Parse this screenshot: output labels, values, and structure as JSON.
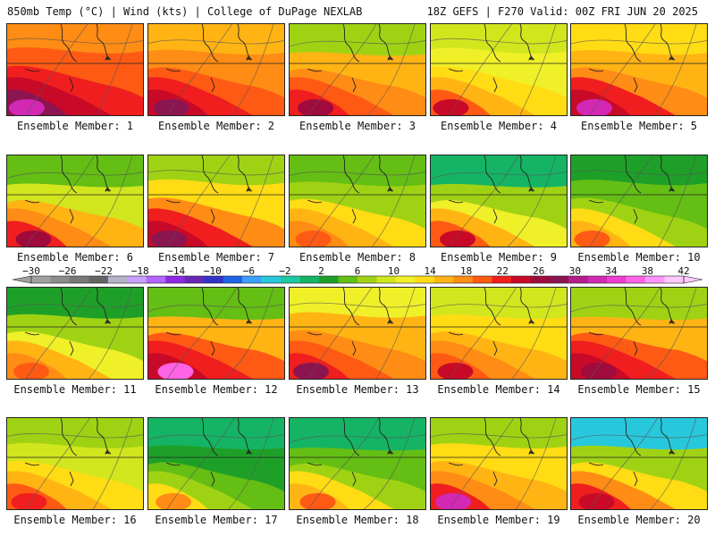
{
  "header": {
    "left": "850mb Temp (°C) | Wind (kts) | College of DuPage NEXLAB",
    "right": "18Z GEFS | F270 Valid: 00Z FRI JUN 20 2025"
  },
  "colorbar": {
    "labels": [
      "−30",
      "−26",
      "−22",
      "−18",
      "−14",
      "−10",
      "−6",
      "−2",
      "2",
      "6",
      "10",
      "14",
      "18",
      "22",
      "26",
      "30",
      "34",
      "38",
      "42"
    ],
    "colors": [
      "#a0a0a0",
      "#8c8c8c",
      "#787878",
      "#646464",
      "#b4b4c8",
      "#c8a0ff",
      "#b464ff",
      "#8c28e6",
      "#6428b4",
      "#3232c8",
      "#1e64e6",
      "#3ca0ff",
      "#28c8dc",
      "#1ec8a0",
      "#14b464",
      "#1ea028",
      "#64be14",
      "#a0d214",
      "#d2e61e",
      "#f0f028",
      "#ffdc14",
      "#ffb414",
      "#ff8c14",
      "#ff5a14",
      "#f01e1e",
      "#c80a28",
      "#a00a3c",
      "#8c1450",
      "#b41e8c",
      "#d228b4",
      "#f03cd2",
      "#ff64e6",
      "#ff96ff",
      "#ffc8ff"
    ]
  },
  "members": [
    {
      "label": "Ensemble Member: 1",
      "palette": [
        "#ff8c14",
        "#ff5a14",
        "#f01e1e",
        "#c80a28",
        "#8c1450",
        "#d228b4"
      ]
    },
    {
      "label": "Ensemble Member: 2",
      "palette": [
        "#ffb414",
        "#ff8c14",
        "#ff5a14",
        "#f01e1e",
        "#c80a28",
        "#8c1450"
      ]
    },
    {
      "label": "Ensemble Member: 3",
      "palette": [
        "#a0d214",
        "#ffb414",
        "#ff8c14",
        "#ff5a14",
        "#f01e1e",
        "#a00a3c"
      ]
    },
    {
      "label": "Ensemble Member: 4",
      "palette": [
        "#d2e61e",
        "#f0f028",
        "#ffdc14",
        "#ffb414",
        "#ff5a14",
        "#c80a28"
      ]
    },
    {
      "label": "Ensemble Member: 5",
      "palette": [
        "#ffdc14",
        "#ffb414",
        "#ff8c14",
        "#f01e1e",
        "#c80a28",
        "#d228b4"
      ]
    },
    {
      "label": "Ensemble Member: 6",
      "palette": [
        "#64be14",
        "#d2e61e",
        "#ffb414",
        "#ff8c14",
        "#f01e1e",
        "#a00a3c"
      ]
    },
    {
      "label": "Ensemble Member: 7",
      "palette": [
        "#a0d214",
        "#ffdc14",
        "#ff8c14",
        "#f01e1e",
        "#c80a28",
        "#8c1450"
      ]
    },
    {
      "label": "Ensemble Member: 8",
      "palette": [
        "#64be14",
        "#a0d214",
        "#ffdc14",
        "#ffb414",
        "#ff8c14",
        "#ff5a14"
      ]
    },
    {
      "label": "Ensemble Member: 9",
      "palette": [
        "#14b464",
        "#a0d214",
        "#f0f028",
        "#ffb414",
        "#ff5a14",
        "#c80a28"
      ]
    },
    {
      "label": "Ensemble Member: 10",
      "palette": [
        "#1ea028",
        "#64be14",
        "#a0d214",
        "#ffdc14",
        "#ffb414",
        "#ff5a14"
      ]
    },
    {
      "label": "Ensemble Member: 11",
      "palette": [
        "#1ea028",
        "#a0d214",
        "#f0f028",
        "#ffb414",
        "#ff8c14",
        "#ff5a14"
      ]
    },
    {
      "label": "Ensemble Member: 12",
      "palette": [
        "#64be14",
        "#ffb414",
        "#ff5a14",
        "#f01e1e",
        "#c80a28",
        "#ff64e6"
      ]
    },
    {
      "label": "Ensemble Member: 13",
      "palette": [
        "#f0f028",
        "#ffb414",
        "#ff8c14",
        "#ff5a14",
        "#f01e1e",
        "#8c1450"
      ]
    },
    {
      "label": "Ensemble Member: 14",
      "palette": [
        "#d2e61e",
        "#ffdc14",
        "#ffb414",
        "#ff8c14",
        "#ff5a14",
        "#c80a28"
      ]
    },
    {
      "label": "Ensemble Member: 15",
      "palette": [
        "#a0d214",
        "#ffb414",
        "#ff5a14",
        "#f01e1e",
        "#c80a28",
        "#a00a3c"
      ]
    },
    {
      "label": "Ensemble Member: 16",
      "palette": [
        "#a0d214",
        "#d2e61e",
        "#ffdc14",
        "#ffb414",
        "#ff5a14",
        "#f01e1e"
      ]
    },
    {
      "label": "Ensemble Member: 17",
      "palette": [
        "#14b464",
        "#1ea028",
        "#64be14",
        "#a0d214",
        "#ffdc14",
        "#ff8c14"
      ]
    },
    {
      "label": "Ensemble Member: 18",
      "palette": [
        "#14b464",
        "#64be14",
        "#a0d214",
        "#ffdc14",
        "#ffb414",
        "#ff5a14"
      ]
    },
    {
      "label": "Ensemble Member: 19",
      "palette": [
        "#a0d214",
        "#ffdc14",
        "#ffb414",
        "#ff8c14",
        "#f01e1e",
        "#d228b4"
      ]
    },
    {
      "label": "Ensemble Member: 20",
      "palette": [
        "#28c8dc",
        "#a0d214",
        "#ffdc14",
        "#ff8c14",
        "#f01e1e",
        "#c80a28"
      ]
    }
  ]
}
